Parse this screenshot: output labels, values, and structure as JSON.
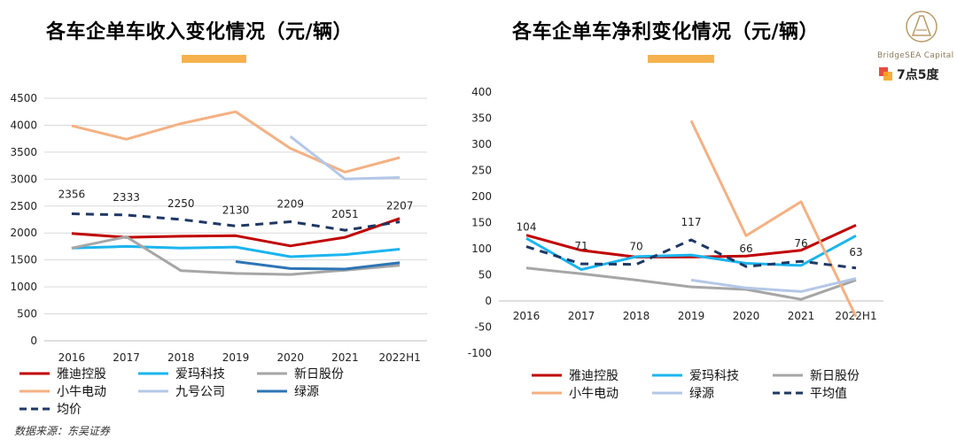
{
  "left_title": "各车企单车收入变化情况（元/辆）",
  "right_title": "各车企单车净利变化情况（元/辆）",
  "source": "数据来源：东吴证券",
  "brand": {
    "name": "BridgeSEA Capital",
    "seven": "7点5度"
  },
  "chart_data": [
    {
      "type": "line",
      "title": "各车企单车收入变化情况（元/辆）",
      "categories": [
        "2016",
        "2017",
        "2018",
        "2019",
        "2020",
        "2021",
        "2022H1"
      ],
      "ylim": [
        0,
        4500
      ],
      "yticks": [
        "0",
        "500",
        "1000",
        "1500",
        "2000",
        "2500",
        "3000",
        "3500",
        "4000",
        "4500"
      ],
      "grid": true,
      "series": [
        {
          "name": "雅迪控股",
          "color": "#C00000",
          "dashed": false,
          "values": [
            1990,
            1920,
            1940,
            1950,
            1760,
            1920,
            2270
          ]
        },
        {
          "name": "爱玛科技",
          "color": "#1BB5EE",
          "dashed": false,
          "values": [
            1720,
            1750,
            1720,
            1740,
            1560,
            1600,
            1700
          ]
        },
        {
          "name": "新日股份",
          "color": "#A6A6A6",
          "dashed": false,
          "values": [
            1720,
            1930,
            1300,
            1250,
            1230,
            1310,
            1400
          ]
        },
        {
          "name": "小牛电动",
          "color": "#F4B183",
          "dashed": false,
          "values": [
            3990,
            3740,
            4030,
            4250,
            3570,
            3130,
            3400
          ]
        },
        {
          "name": "九号公司",
          "color": "#B4C7E7",
          "dashed": false,
          "values": [
            null,
            null,
            null,
            null,
            3790,
            3000,
            3030
          ]
        },
        {
          "name": "绿源",
          "color": "#2E75B6",
          "dashed": false,
          "values": [
            null,
            null,
            null,
            1470,
            1340,
            1330,
            1450
          ]
        },
        {
          "name": "均价",
          "color": "#1F3864",
          "dashed": true,
          "values": [
            2356,
            2333,
            2250,
            2130,
            2209,
            2051,
            2207
          ]
        }
      ],
      "data_labels": [
        "2356",
        "2333",
        "2250",
        "2130",
        "2209",
        "2051",
        "2207"
      ]
    },
    {
      "type": "line",
      "title": "各车企单车净利变化情况（元/辆）",
      "categories": [
        "2016",
        "2017",
        "2018",
        "2019",
        "2020",
        "2021",
        "2022H1"
      ],
      "ylim": [
        -100,
        400
      ],
      "yticks": [
        "-100",
        "-50",
        "0",
        "50",
        "100",
        "150",
        "200",
        "250",
        "300",
        "350",
        "400"
      ],
      "grid": false,
      "series": [
        {
          "name": "雅迪控股",
          "color": "#C00000",
          "dashed": false,
          "values": [
            126,
            97,
            84,
            84,
            86,
            97,
            145
          ]
        },
        {
          "name": "爱玛科技",
          "color": "#1BB5EE",
          "dashed": false,
          "values": [
            120,
            60,
            85,
            88,
            72,
            68,
            125
          ]
        },
        {
          "name": "新日股份",
          "color": "#A6A6A6",
          "dashed": false,
          "values": [
            63,
            52,
            40,
            27,
            22,
            3,
            40
          ]
        },
        {
          "name": "小牛电动",
          "color": "#F4B183",
          "dashed": false,
          "values": [
            null,
            null,
            null,
            345,
            125,
            190,
            -30
          ]
        },
        {
          "name": "绿源",
          "color": "#B4C7E7",
          "dashed": false,
          "values": [
            null,
            null,
            null,
            40,
            25,
            18,
            43
          ]
        },
        {
          "name": "平均值",
          "color": "#1F3864",
          "dashed": true,
          "values": [
            104,
            71,
            70,
            117,
            66,
            76,
            63
          ]
        }
      ],
      "data_labels": [
        "104",
        "71",
        "70",
        "117",
        "66",
        "76",
        "63"
      ]
    }
  ]
}
